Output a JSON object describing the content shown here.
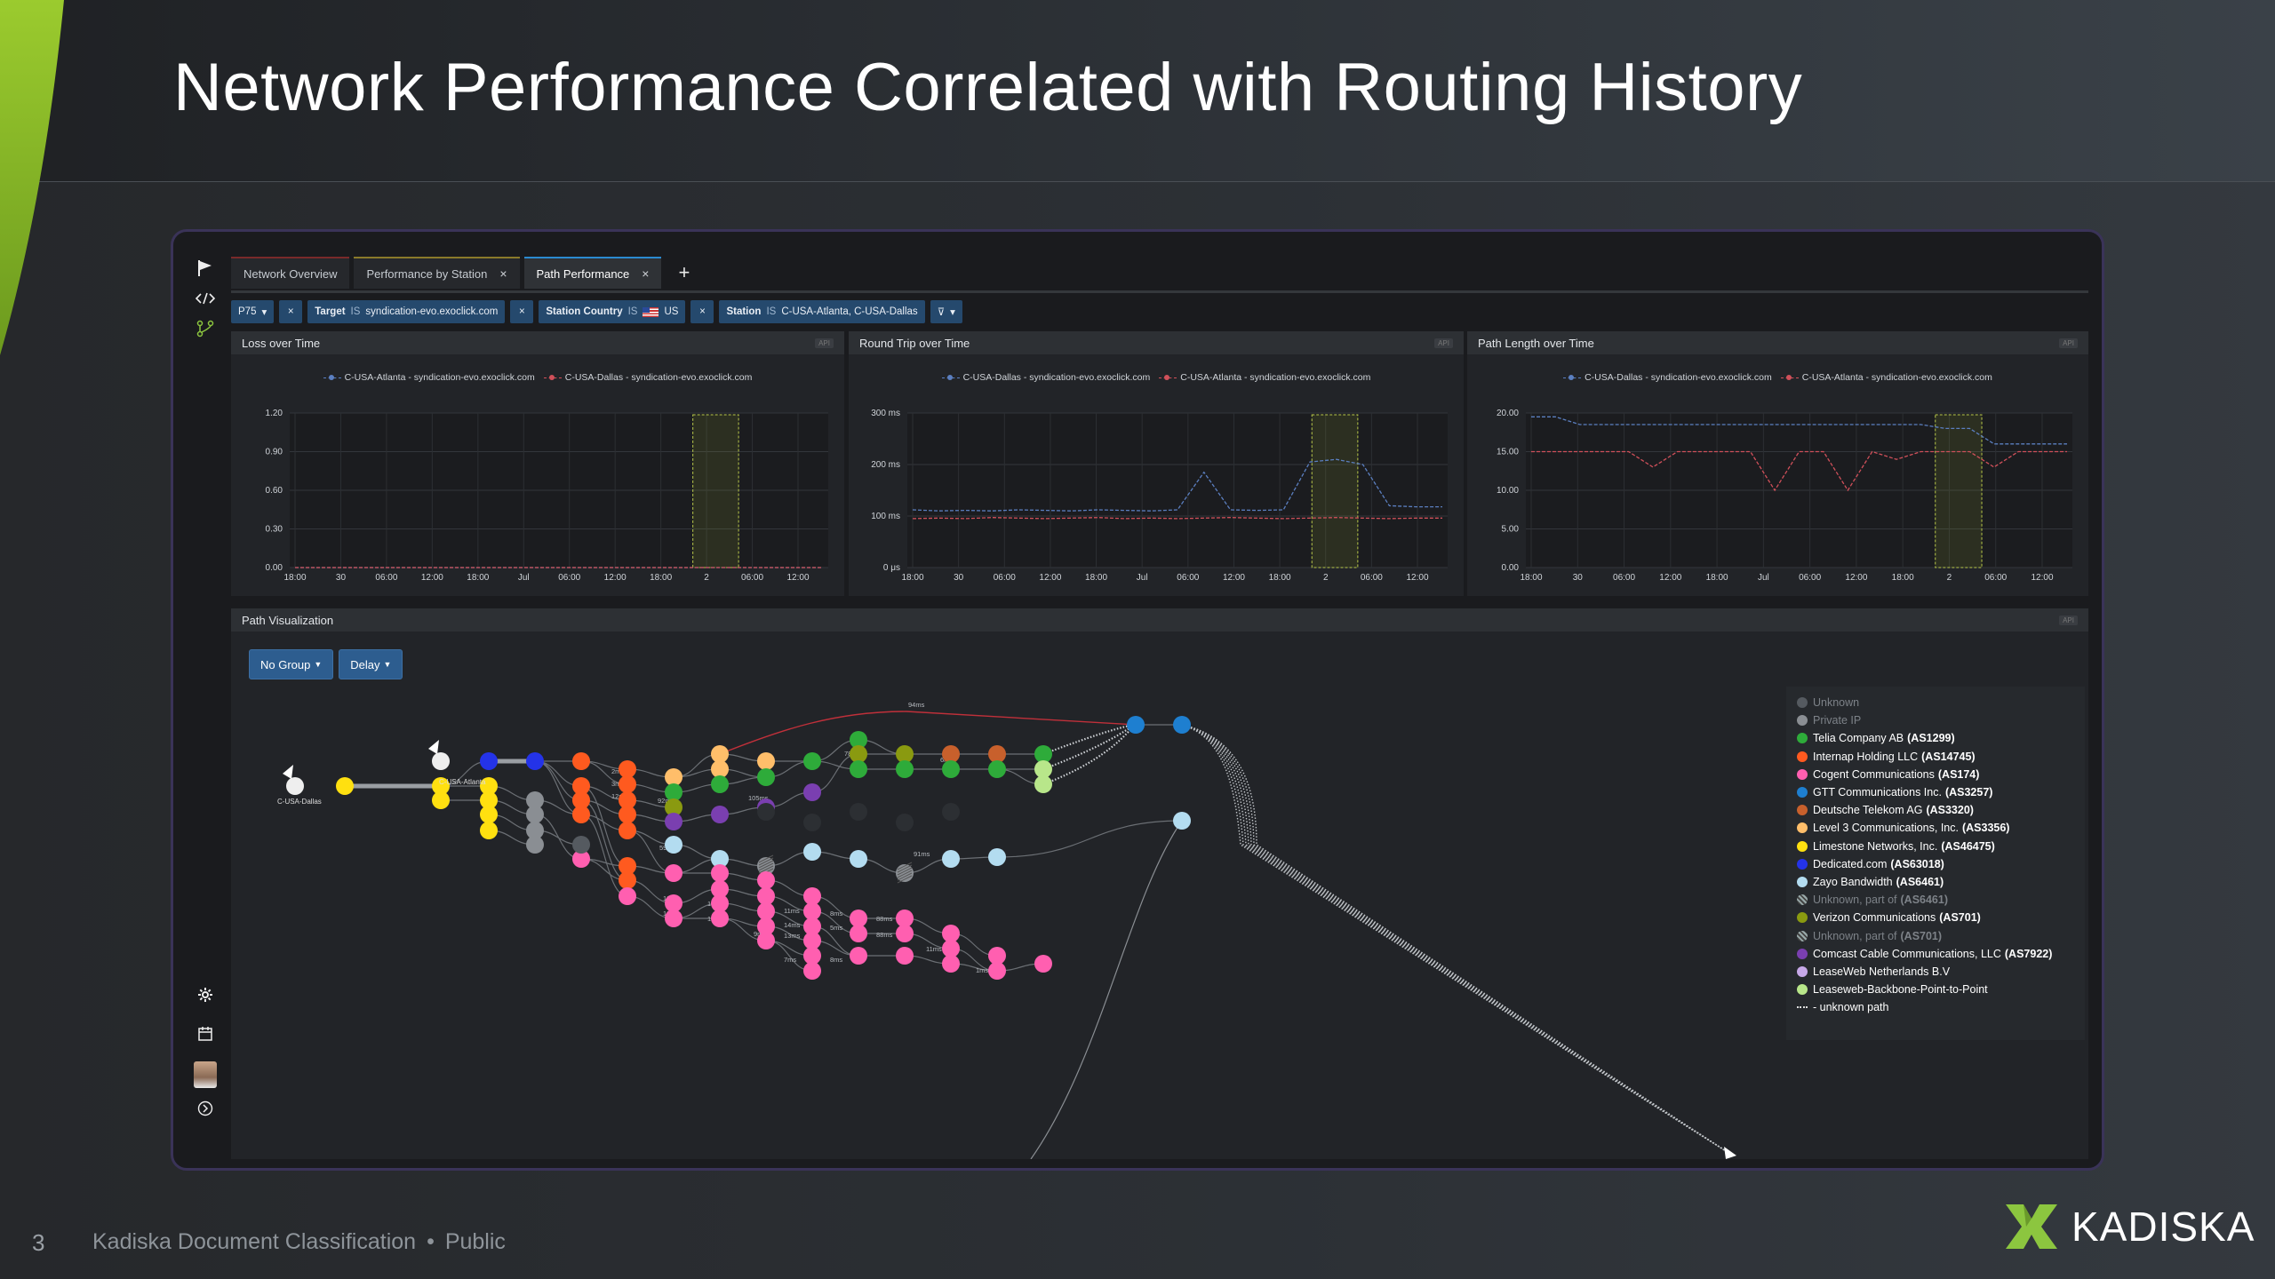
{
  "slide": {
    "title": "Network Performance Correlated with Routing History",
    "page_number": "3",
    "footer_text": "Kadiska Document Classification",
    "footer_separator": "•",
    "footer_classification": "Public",
    "brand": "KADISKA",
    "brand_color": "#8cc63f"
  },
  "app": {
    "tabs": [
      {
        "label": "Network Overview",
        "closable": false,
        "active": false
      },
      {
        "label": "Performance by Station",
        "closable": true,
        "active": false
      },
      {
        "label": "Path Performance",
        "closable": true,
        "active": true
      }
    ],
    "tab_add": "+",
    "close_glyph": "×",
    "filters": {
      "percentile": "P75",
      "target_key": "Target",
      "target_op": "IS",
      "target_val": "syndication-evo.exoclick.com",
      "country_key": "Station Country",
      "country_op": "IS",
      "country_val": "US",
      "station_key": "Station",
      "station_op": "IS",
      "station_val": "C-USA-Atlanta,  C-USA-Dallas"
    },
    "api_badge": "API",
    "path_panel": {
      "title": "Path Visualization",
      "group_button": "No Group",
      "metric_button": "Delay",
      "source_left": "C-USA-Dallas",
      "source_mid": "C-USA-Atlanta",
      "legend": [
        {
          "label": "Unknown",
          "asn": "",
          "color": "#555a60",
          "dim": true
        },
        {
          "label": "Private IP",
          "asn": "",
          "color": "#8a8e93",
          "dim": true
        },
        {
          "label": "Telia Company AB",
          "asn": "(AS1299)",
          "color": "#2eab3a",
          "dim": false
        },
        {
          "label": "Internap Holding LLC",
          "asn": "(AS14745)",
          "color": "#ff5a1f",
          "dim": false
        },
        {
          "label": "Cogent Communications",
          "asn": "(AS174)",
          "color": "#ff5fb0",
          "dim": false
        },
        {
          "label": "GTT Communications Inc.",
          "asn": "(AS3257)",
          "color": "#1e7fd0",
          "dim": false
        },
        {
          "label": "Deutsche Telekom AG",
          "asn": "(AS3320)",
          "color": "#c8602c",
          "dim": false
        },
        {
          "label": "Level 3 Communications, Inc.",
          "asn": "(AS3356)",
          "color": "#ffbe6a",
          "dim": false
        },
        {
          "label": "Limestone Networks, Inc.",
          "asn": "(AS46475)",
          "color": "#ffe010",
          "dim": false
        },
        {
          "label": "Dedicated.com",
          "asn": "(AS63018)",
          "color": "#2433e8",
          "dim": false
        },
        {
          "label": "Zayo Bandwidth",
          "asn": "(AS6461)",
          "color": "#b3dcf0",
          "dim": false
        },
        {
          "label": "Unknown, part of",
          "asn": "(AS6461)",
          "color": "hatch",
          "dim": true
        },
        {
          "label": "Verizon Communications",
          "asn": "(AS701)",
          "color": "#8a9a10",
          "dim": false
        },
        {
          "label": "Unknown, part of",
          "asn": "(AS701)",
          "color": "hatch",
          "dim": true
        },
        {
          "label": "Comcast Cable Communications, LLC",
          "asn": "(AS7922)",
          "color": "#7a3fb0",
          "dim": false
        },
        {
          "label": "LeaseWeb Netherlands B.V",
          "asn": "",
          "color": "#c7a8e8",
          "dim": false
        },
        {
          "label": "Leaseweb-Backbone-Point-to-Point",
          "asn": "",
          "color": "#b8e68a",
          "dim": false
        },
        {
          "label": "- unknown path",
          "asn": "",
          "color": "dash",
          "dim": false
        }
      ],
      "link_labels": [
        "94ms",
        "2ms",
        "3ms",
        "12ms",
        "92ms",
        "105ms",
        "78ms",
        "6ms",
        "59ms",
        "91ms",
        "10ms",
        "10ms",
        "12ms",
        "12ms",
        "9ms",
        "11ms",
        "14ms",
        "13ms",
        "8ms",
        "5ms",
        "88ms",
        "88ms",
        "7ms",
        "8ms",
        "11ms",
        "1ms"
      ]
    }
  },
  "chart_data": [
    {
      "type": "line",
      "title": "Loss over Time",
      "x_ticks": [
        "18:00",
        "30",
        "06:00",
        "12:00",
        "18:00",
        "Jul",
        "06:00",
        "12:00",
        "18:00",
        "2",
        "06:00",
        "12:00"
      ],
      "y_ticks": [
        "0.00",
        "0.30",
        "0.60",
        "0.90",
        "1.20"
      ],
      "ylim": [
        0,
        1.2
      ],
      "highlight_range": [
        "2",
        "06:00"
      ],
      "series": [
        {
          "name": "C-USA-Atlanta - syndication-evo.exoclick.com",
          "color": "#5b7fc0",
          "values": [
            0,
            0,
            0,
            0,
            0,
            0,
            0,
            0,
            0,
            0,
            0,
            0,
            0
          ]
        },
        {
          "name": "C-USA-Dallas - syndication-evo.exoclick.com",
          "color": "#d0505a",
          "values": [
            0,
            0,
            0,
            0,
            0,
            0,
            0,
            0,
            0,
            0,
            0,
            0,
            0
          ]
        }
      ]
    },
    {
      "type": "line",
      "title": "Round Trip over Time",
      "x_ticks": [
        "18:00",
        "30",
        "06:00",
        "12:00",
        "18:00",
        "Jul",
        "06:00",
        "12:00",
        "18:00",
        "2",
        "06:00",
        "12:00"
      ],
      "y_ticks": [
        "0 μs",
        "100 ms",
        "200 ms",
        "300 ms"
      ],
      "ylim": [
        0,
        300
      ],
      "highlight_range": [
        "2",
        "06:00"
      ],
      "series": [
        {
          "name": "C-USA-Dallas - syndication-evo.exoclick.com",
          "color": "#5b7fc0",
          "values": [
            112,
            110,
            111,
            110,
            112,
            111,
            110,
            112,
            111,
            110,
            112,
            185,
            112,
            111,
            112,
            205,
            210,
            200,
            120,
            118,
            118
          ]
        },
        {
          "name": "C-USA-Atlanta - syndication-evo.exoclick.com",
          "color": "#d0505a",
          "values": [
            95,
            96,
            95,
            97,
            96,
            95,
            96,
            97,
            95,
            96,
            95,
            96,
            97,
            96,
            95,
            96,
            97,
            96,
            95,
            96,
            96
          ]
        }
      ]
    },
    {
      "type": "line",
      "title": "Path Length over Time",
      "x_ticks": [
        "18:00",
        "30",
        "06:00",
        "12:00",
        "18:00",
        "Jul",
        "06:00",
        "12:00",
        "18:00",
        "2",
        "06:00",
        "12:00"
      ],
      "y_ticks": [
        "0.00",
        "5.00",
        "10.00",
        "15.00",
        "20.00"
      ],
      "ylim": [
        0,
        20
      ],
      "highlight_range": [
        "2",
        "06:00"
      ],
      "series": [
        {
          "name": "C-USA-Dallas - syndication-evo.exoclick.com",
          "color": "#5b7fc0",
          "values": [
            19.5,
            19.5,
            18.5,
            18.5,
            18.5,
            18.5,
            18.5,
            18.5,
            18.5,
            18.5,
            18.5,
            18.5,
            18.5,
            18.5,
            18.5,
            18.5,
            18.5,
            18,
            18,
            16,
            16,
            16,
            16
          ]
        },
        {
          "name": "C-USA-Atlanta - syndication-evo.exoclick.com",
          "color": "#d0505a",
          "values": [
            15,
            15,
            15,
            15,
            15,
            13,
            15,
            15,
            15,
            15,
            10,
            15,
            15,
            10,
            15,
            14,
            15,
            15,
            15,
            13,
            15,
            15,
            15
          ]
        }
      ]
    }
  ]
}
